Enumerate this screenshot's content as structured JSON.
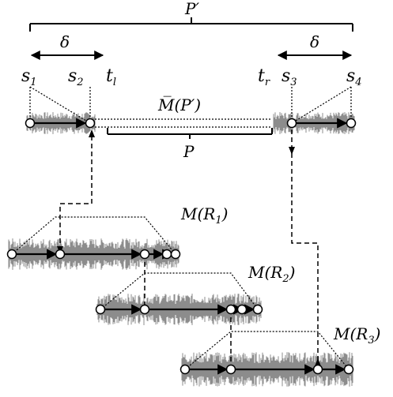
{
  "labels": {
    "p_prime": "P′",
    "delta_left": "δ",
    "delta_right": "δ",
    "s1": "s",
    "s1_sub": "1",
    "s2": "s",
    "s2_sub": "2",
    "s3": "s",
    "s3_sub": "3",
    "s4": "s",
    "s4_sub": "4",
    "tl": "t",
    "tl_sub": "l",
    "tr": "t",
    "tr_sub": "r",
    "m_bar_p_prime": "M̅(P′)",
    "p": "P",
    "m_r1": "M(R",
    "m_r1_sub": "1",
    "m_r1_end": ")",
    "m_r2": "M(R",
    "m_r2_sub": "2",
    "m_r2_end": ")",
    "m_r3": "M(R",
    "m_r3_sub": "3",
    "m_r3_end": ")"
  },
  "colors": {
    "waveform": "#8c8c8c",
    "line": "#000000",
    "node_fill": "#ffffff"
  }
}
